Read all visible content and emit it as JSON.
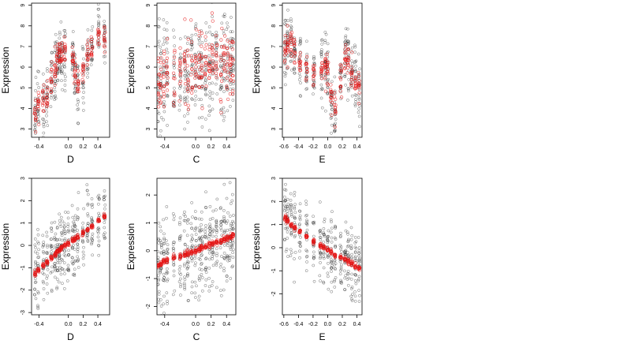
{
  "chart_data": [
    {
      "type": "scatter",
      "xlabel": "D",
      "ylabel": "Expression",
      "xlim": [
        -0.5,
        0.56
      ],
      "ylim": [
        2.6,
        9.1
      ],
      "xticks": [
        -0.4,
        0.0,
        0.2,
        0.4
      ],
      "xtick_labels": [
        "-0.4",
        "0.0",
        "0.2",
        "0.4"
      ],
      "yticks": [
        3,
        4,
        5,
        6,
        7,
        8,
        9
      ],
      "ytick_labels": [
        "3",
        "4",
        "5",
        "6",
        "7",
        "8",
        "9"
      ],
      "groups_x": [
        -0.45,
        -0.41,
        -0.34,
        -0.29,
        -0.23,
        -0.18,
        -0.15,
        -0.12,
        -0.09,
        -0.05,
        0.06,
        0.09,
        0.13,
        0.2,
        0.26,
        0.32,
        0.41,
        0.49
      ],
      "observed_means": [
        3.6,
        4.0,
        4.1,
        4.5,
        5.4,
        5.9,
        6.2,
        6.4,
        6.5,
        6.6,
        6.2,
        5.5,
        5.0,
        5.7,
        6.4,
        6.9,
        7.8,
        7.6
      ],
      "fitted_means": [
        3.7,
        4.1,
        4.3,
        4.6,
        5.5,
        6.0,
        6.3,
        6.6,
        6.7,
        6.8,
        6.3,
        5.7,
        5.3,
        5.9,
        6.5,
        7.0,
        7.5,
        7.4
      ],
      "spread": 0.7,
      "fit_spread": 0.35,
      "grid": false
    },
    {
      "type": "scatter",
      "xlabel": "C",
      "ylabel": "Expression",
      "xlim": [
        -0.5,
        0.52
      ],
      "ylim": [
        2.6,
        9.1
      ],
      "xticks": [
        -0.4,
        0.0,
        0.2,
        0.4
      ],
      "xtick_labels": [
        "-0.4",
        "0.0",
        "0.2",
        "0.4"
      ],
      "yticks": [
        3,
        4,
        5,
        6,
        7,
        8,
        9
      ],
      "ytick_labels": [
        "3",
        "4",
        "5",
        "6",
        "7",
        "8",
        "9"
      ],
      "groups_x": [
        -0.48,
        -0.45,
        -0.41,
        -0.37,
        -0.28,
        -0.2,
        -0.14,
        -0.1,
        -0.05,
        0.0,
        0.05,
        0.08,
        0.13,
        0.18,
        0.22,
        0.27,
        0.33,
        0.37,
        0.41,
        0.45,
        0.48
      ],
      "observed_means": [
        5.2,
        5.5,
        5.6,
        5.7,
        5.6,
        5.6,
        5.7,
        5.9,
        5.8,
        5.9,
        6.0,
        5.8,
        5.9,
        5.9,
        6.0,
        5.9,
        6.1,
        6.0,
        6.1,
        6.2,
        6.3
      ],
      "fitted_means": [
        5.1,
        5.3,
        5.5,
        5.6,
        5.6,
        5.7,
        5.8,
        5.9,
        5.9,
        5.9,
        6.0,
        5.9,
        6.0,
        6.0,
        6.1,
        6.0,
        6.1,
        6.1,
        6.2,
        6.3,
        6.4
      ],
      "spread": 1.2,
      "fit_spread": 0.9,
      "grid": false
    },
    {
      "type": "scatter",
      "xlabel": "E",
      "ylabel": "Expression",
      "xlim": [
        -0.62,
        0.47
      ],
      "ylim": [
        2.6,
        9.1
      ],
      "xticks": [
        -0.6,
        -0.4,
        -0.2,
        0.0,
        0.2,
        0.4
      ],
      "xtick_labels": [
        "-0.6",
        "-0.4",
        "-0.2",
        "0.0",
        "0.2",
        "0.4"
      ],
      "yticks": [
        3,
        4,
        5,
        6,
        7,
        8,
        9
      ],
      "ytick_labels": [
        "3",
        "4",
        "5",
        "6",
        "7",
        "8",
        "9"
      ],
      "groups_x": [
        -0.58,
        -0.55,
        -0.5,
        -0.45,
        -0.38,
        -0.29,
        -0.19,
        -0.08,
        -0.03,
        0.0,
        0.05,
        0.1,
        0.18,
        0.24,
        0.28,
        0.33,
        0.38,
        0.43
      ],
      "observed_means": [
        7.0,
        7.2,
        7.3,
        6.7,
        6.3,
        6.0,
        5.6,
        5.7,
        6.0,
        5.8,
        4.4,
        3.9,
        5.5,
        6.6,
        6.4,
        5.5,
        5.2,
        4.9
      ],
      "fitted_means": [
        6.9,
        7.1,
        7.2,
        6.8,
        6.3,
        6.0,
        5.7,
        5.6,
        5.9,
        5.7,
        4.6,
        4.1,
        5.6,
        6.6,
        6.3,
        5.6,
        5.3,
        5.0
      ],
      "spread": 0.75,
      "fit_spread": 0.4,
      "grid": false
    },
    {
      "type": "scatter",
      "xlabel": "D",
      "ylabel": "Expression",
      "xlim": [
        -0.5,
        0.56
      ],
      "ylim": [
        -3.1,
        3.0
      ],
      "xticks": [
        -0.4,
        0.0,
        0.2,
        0.4
      ],
      "xtick_labels": [
        "-0.4",
        "0.0",
        "0.2",
        "0.4"
      ],
      "yticks": [
        -3,
        -2,
        -1,
        0,
        1,
        2,
        3
      ],
      "ytick_labels": [
        "-3",
        "-2",
        "-1",
        "0",
        "1",
        "2",
        "3"
      ],
      "groups_x": [
        -0.45,
        -0.41,
        -0.34,
        -0.29,
        -0.23,
        -0.18,
        -0.15,
        -0.12,
        -0.09,
        -0.05,
        0.0,
        0.06,
        0.09,
        0.13,
        0.2,
        0.26,
        0.32,
        0.41,
        0.49
      ],
      "observed_means": [
        -1.2,
        -1.0,
        -0.9,
        -0.8,
        -0.5,
        -0.4,
        -0.3,
        -0.2,
        -0.1,
        0.0,
        0.1,
        0.3,
        0.2,
        0.4,
        0.6,
        0.7,
        0.8,
        1.1,
        1.3
      ],
      "fitted_means": [
        -1.25,
        -1.1,
        -0.9,
        -0.75,
        -0.55,
        -0.4,
        -0.3,
        -0.2,
        -0.1,
        0.0,
        0.1,
        0.25,
        0.3,
        0.4,
        0.55,
        0.7,
        0.85,
        1.1,
        1.3
      ],
      "spread": 0.8,
      "fit_spread": 0.05,
      "grid": false
    },
    {
      "type": "scatter",
      "xlabel": "C",
      "ylabel": "Expression",
      "xlim": [
        -0.5,
        0.52
      ],
      "ylim": [
        -2.3,
        2.6
      ],
      "xticks": [
        -0.4,
        0.0,
        0.2,
        0.4
      ],
      "xtick_labels": [
        "-0.4",
        "0.0",
        "0.2",
        "0.4"
      ],
      "yticks": [
        -2,
        -1,
        0,
        1,
        2
      ],
      "ytick_labels": [
        "-2",
        "-1",
        "0",
        "1",
        "2"
      ],
      "groups_x": [
        -0.48,
        -0.45,
        -0.41,
        -0.37,
        -0.28,
        -0.2,
        -0.14,
        -0.1,
        -0.05,
        0.0,
        0.05,
        0.08,
        0.13,
        0.18,
        0.22,
        0.27,
        0.33,
        0.37,
        0.41,
        0.45,
        0.48
      ],
      "observed_means": [
        -0.5,
        -0.45,
        -0.4,
        -0.35,
        -0.25,
        -0.2,
        -0.15,
        -0.1,
        -0.05,
        0.0,
        0.05,
        0.1,
        0.15,
        0.2,
        0.25,
        0.3,
        0.35,
        0.4,
        0.45,
        0.5,
        0.55
      ],
      "fitted_means": [
        -0.5,
        -0.45,
        -0.4,
        -0.35,
        -0.25,
        -0.2,
        -0.15,
        -0.1,
        -0.05,
        0.0,
        0.05,
        0.1,
        0.15,
        0.2,
        0.25,
        0.3,
        0.35,
        0.4,
        0.45,
        0.5,
        0.55
      ],
      "spread": 0.8,
      "fit_spread": 0.05,
      "grid": false
    },
    {
      "type": "scatter",
      "xlabel": "E",
      "ylabel": "Expression",
      "xlim": [
        -0.62,
        0.47
      ],
      "ylim": [
        -2.9,
        3.0
      ],
      "xticks": [
        -0.6,
        -0.4,
        -0.2,
        0.0,
        0.2,
        0.4
      ],
      "xtick_labels": [
        "-0.6",
        "-0.4",
        "-0.2",
        "0.0",
        "0.2",
        "0.4"
      ],
      "yticks": [
        -2,
        -1,
        0,
        1,
        2,
        3
      ],
      "ytick_labels": [
        "-2",
        "-1",
        "0",
        "1",
        "2",
        "3"
      ],
      "groups_x": [
        -0.58,
        -0.55,
        -0.5,
        -0.45,
        -0.38,
        -0.29,
        -0.19,
        -0.1,
        -0.05,
        0.0,
        0.05,
        0.1,
        0.18,
        0.24,
        0.28,
        0.33,
        0.38,
        0.43
      ],
      "observed_means": [
        1.3,
        1.1,
        1.0,
        0.8,
        0.7,
        0.5,
        0.3,
        0.1,
        0.0,
        -0.1,
        -0.2,
        -0.3,
        -0.4,
        -0.5,
        -0.6,
        -0.7,
        -0.8,
        -0.9
      ],
      "fitted_means": [
        1.3,
        1.15,
        1.0,
        0.85,
        0.7,
        0.5,
        0.3,
        0.1,
        0.0,
        -0.1,
        -0.2,
        -0.3,
        -0.4,
        -0.5,
        -0.6,
        -0.7,
        -0.8,
        -0.9
      ],
      "spread": 0.8,
      "fit_spread": 0.05,
      "grid": false
    }
  ]
}
